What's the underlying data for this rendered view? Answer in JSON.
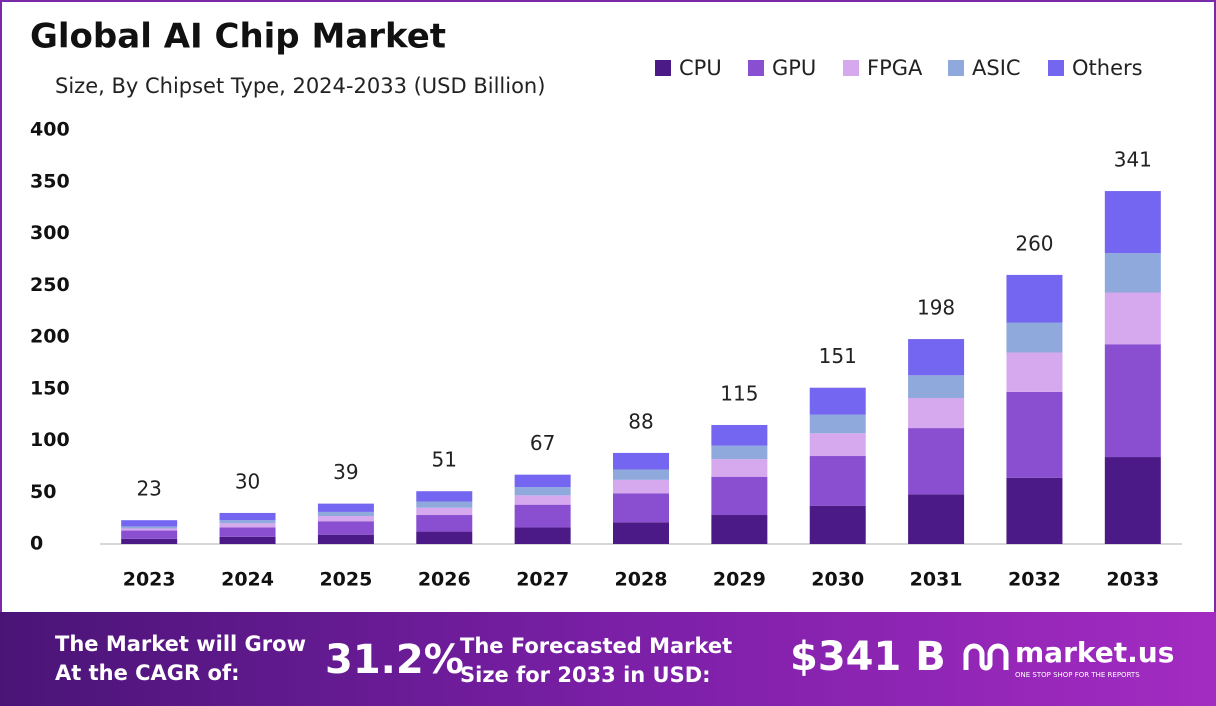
{
  "chart_data": {
    "type": "stacked_bar",
    "title": "Global AI Chip Market",
    "subtitle": "Size, By Chipset Type, 2024-2033 (USD Billion)",
    "categories": [
      "2023",
      "2024",
      "2025",
      "2026",
      "2027",
      "2028",
      "2029",
      "2030",
      "2031",
      "2032",
      "2033"
    ],
    "series": [
      {
        "name": "CPU",
        "color": "#4b1a86",
        "values": [
          5,
          7,
          9,
          12,
          16,
          21,
          28,
          37,
          48,
          64,
          84
        ]
      },
      {
        "name": "GPU",
        "color": "#8a4fd0",
        "values": [
          8,
          9,
          13,
          16,
          22,
          28,
          37,
          48,
          64,
          83,
          109
        ]
      },
      {
        "name": "FPGA",
        "color": "#d6a8ee",
        "values": [
          2,
          4,
          5,
          7,
          9,
          13,
          17,
          22,
          29,
          38,
          50
        ]
      },
      {
        "name": "ASIC",
        "color": "#8fa9dc",
        "values": [
          2,
          3,
          4,
          6,
          8,
          10,
          13,
          18,
          22,
          29,
          38
        ]
      },
      {
        "name": "Others",
        "color": "#7466f0",
        "values": [
          6,
          7,
          8,
          10,
          12,
          16,
          20,
          26,
          35,
          46,
          60
        ]
      }
    ],
    "totals": [
      23,
      30,
      39,
      51,
      67,
      88,
      115,
      151,
      198,
      260,
      341
    ],
    "ylim": [
      0,
      400
    ],
    "yticks": [
      0,
      50,
      100,
      150,
      200,
      250,
      300,
      350,
      400
    ],
    "grid": false
  },
  "footer": {
    "cagr_label": [
      "The Market will Grow",
      "At the CAGR of:"
    ],
    "cagr": "31.2%",
    "forecast_label": [
      "The Forecasted Market",
      "Size for 2033 in USD:"
    ],
    "forecast": "$341 B",
    "brand": "market.us",
    "tagline": "ONE STOP SHOP FOR THE REPORTS"
  }
}
